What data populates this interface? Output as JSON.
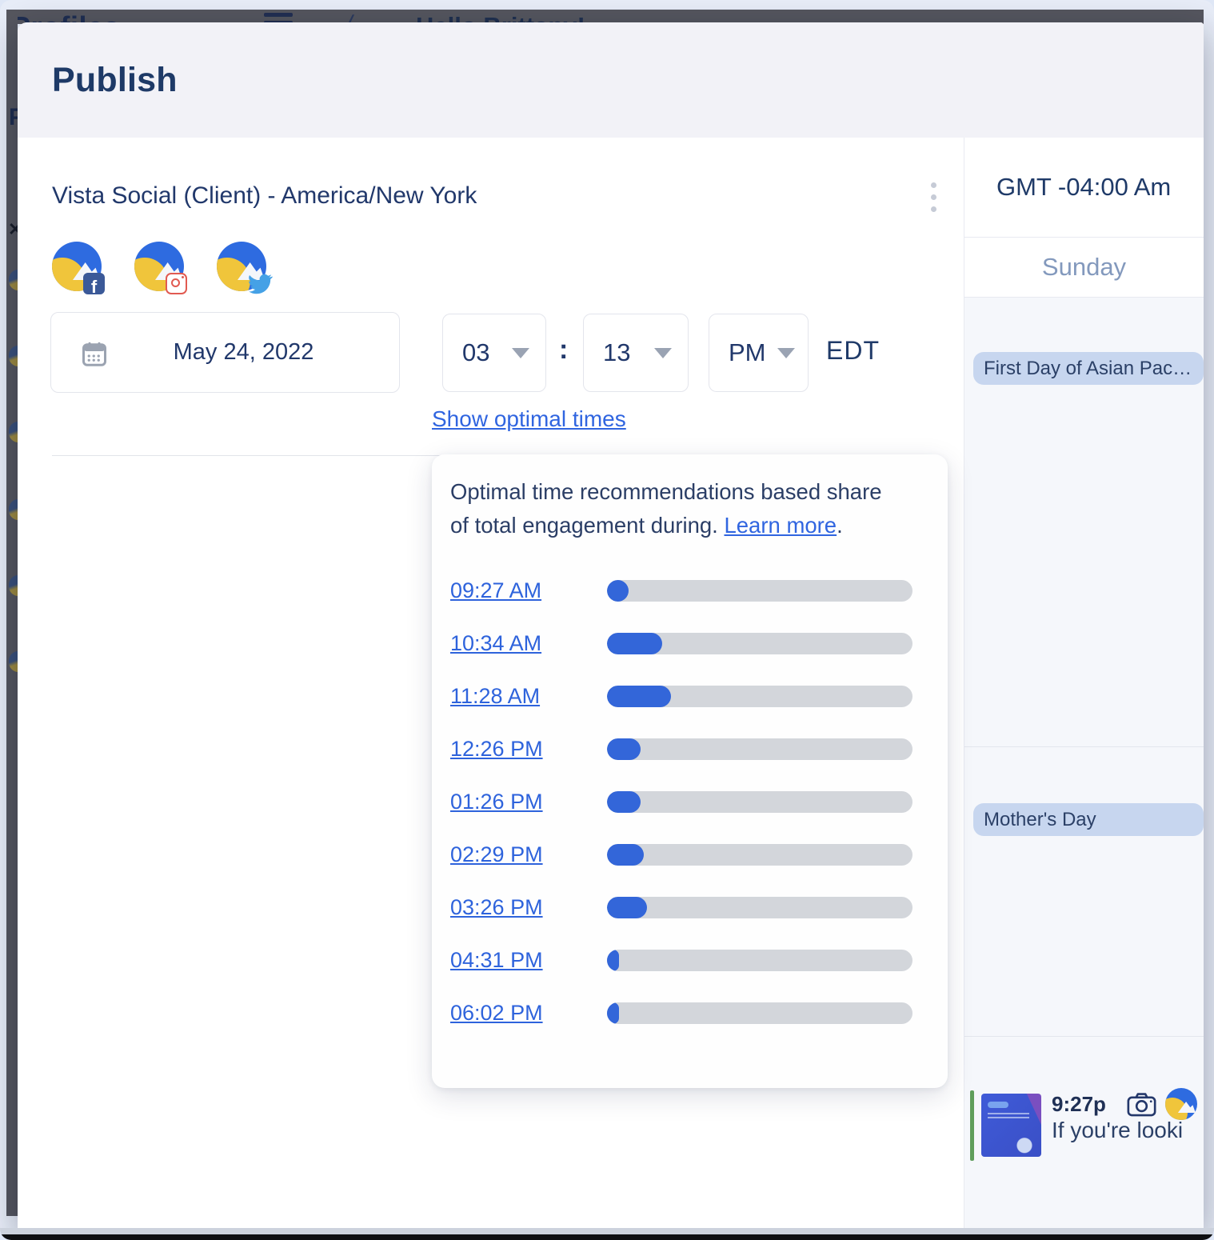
{
  "backdrop": {
    "page_title": "Profiles",
    "breadcrumb_separator": "/",
    "greeting": "Hello Brittany!",
    "sidebar_hint_letter": "P"
  },
  "modal": {
    "title": "Publish"
  },
  "composer": {
    "profile_title": "Vista Social (Client) - America/New York",
    "profiles": [
      {
        "network": "facebook"
      },
      {
        "network": "instagram"
      },
      {
        "network": "twitter"
      }
    ],
    "date_value": "May 24, 2022",
    "hour": "03",
    "minute": "13",
    "meridiem": "PM",
    "time_separator": ":",
    "timezone_abbr": "EDT",
    "show_optimal_link": "Show optimal times"
  },
  "optimal_popover": {
    "description_before": "Optimal time recommendations based share of total engagement during. ",
    "learn_more_label": "Learn more",
    "sentence_end": ".",
    "times": [
      {
        "label": "09:27 AM",
        "engagement_percent": 7
      },
      {
        "label": "10:34 AM",
        "engagement_percent": 18
      },
      {
        "label": "11:28 AM",
        "engagement_percent": 21
      },
      {
        "label": "12:26 PM",
        "engagement_percent": 11
      },
      {
        "label": "01:26 PM",
        "engagement_percent": 11
      },
      {
        "label": "02:29 PM",
        "engagement_percent": 12
      },
      {
        "label": "03:26 PM",
        "engagement_percent": 13
      },
      {
        "label": "04:31 PM",
        "engagement_percent": 4
      },
      {
        "label": "06:02 PM",
        "engagement_percent": 4
      }
    ]
  },
  "calendar": {
    "timezone_header": "GMT -04:00 Am",
    "day_header": "Sunday",
    "events": [
      {
        "label": "First Day of Asian Pac…"
      },
      {
        "label": "Mother's Day"
      }
    ],
    "post_preview": {
      "time": "9:27p",
      "text": "If you're looki"
    }
  },
  "colors": {
    "accent_blue": "#3366d9",
    "link_blue": "#2e63dc",
    "navy_text": "#21386b",
    "bar_track_gray": "#d3d6db",
    "event_pill_bg": "#c7d6ef",
    "post_indicator_green": "#5f9e5b"
  }
}
